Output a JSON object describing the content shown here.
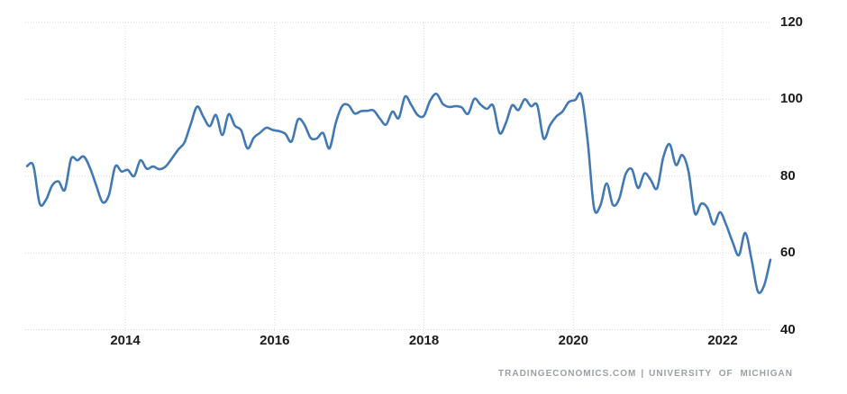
{
  "chart_data": {
    "type": "line",
    "series": [
      {
        "name": "UNIVERSITY OF MICHIGAN",
        "color": "#4279b4",
        "dates": [
          "2012-10",
          "2012-11",
          "2012-12",
          "2013-01",
          "2013-02",
          "2013-03",
          "2013-04",
          "2013-05",
          "2013-06",
          "2013-07",
          "2013-08",
          "2013-09",
          "2013-10",
          "2013-11",
          "2013-12",
          "2014-01",
          "2014-02",
          "2014-03",
          "2014-04",
          "2014-05",
          "2014-06",
          "2014-07",
          "2014-08",
          "2014-09",
          "2014-10",
          "2014-11",
          "2014-12",
          "2015-01",
          "2015-02",
          "2015-03",
          "2015-04",
          "2015-05",
          "2015-06",
          "2015-07",
          "2015-08",
          "2015-09",
          "2015-10",
          "2015-11",
          "2015-12",
          "2016-01",
          "2016-02",
          "2016-03",
          "2016-04",
          "2016-05",
          "2016-06",
          "2016-07",
          "2016-08",
          "2016-09",
          "2016-10",
          "2016-11",
          "2016-12",
          "2017-01",
          "2017-02",
          "2017-03",
          "2017-04",
          "2017-05",
          "2017-06",
          "2017-07",
          "2017-08",
          "2017-09",
          "2017-10",
          "2017-11",
          "2017-12",
          "2018-01",
          "2018-02",
          "2018-03",
          "2018-04",
          "2018-05",
          "2018-06",
          "2018-07",
          "2018-08",
          "2018-09",
          "2018-10",
          "2018-11",
          "2018-12",
          "2019-01",
          "2019-02",
          "2019-03",
          "2019-04",
          "2019-05",
          "2019-06",
          "2019-07",
          "2019-08",
          "2019-09",
          "2019-10",
          "2019-11",
          "2019-12",
          "2020-01",
          "2020-02",
          "2020-03",
          "2020-04",
          "2020-05",
          "2020-06",
          "2020-07",
          "2020-08",
          "2020-09",
          "2020-10",
          "2020-11",
          "2020-12",
          "2021-01",
          "2021-02",
          "2021-03",
          "2021-04",
          "2021-05",
          "2021-06",
          "2021-07",
          "2021-08",
          "2021-09",
          "2021-10",
          "2021-11",
          "2021-12",
          "2022-01",
          "2022-02",
          "2022-03",
          "2022-04",
          "2022-05",
          "2022-06",
          "2022-07",
          "2022-08"
        ],
        "values": [
          82.6,
          82.7,
          72.9,
          73.8,
          77.6,
          78.6,
          76.4,
          84.5,
          84.1,
          85.1,
          82.1,
          77.5,
          73.2,
          75.1,
          82.5,
          81.2,
          81.6,
          80.0,
          84.1,
          81.9,
          82.5,
          81.8,
          82.5,
          84.6,
          86.9,
          88.8,
          93.6,
          98.1,
          95.4,
          93.0,
          95.9,
          90.7,
          96.1,
          93.1,
          91.9,
          87.2,
          90.0,
          91.3,
          92.6,
          92.0,
          91.7,
          91.0,
          89.0,
          94.7,
          93.5,
          90.0,
          89.8,
          91.2,
          87.2,
          93.8,
          98.2,
          98.5,
          96.3,
          96.9,
          97.0,
          97.1,
          95.0,
          93.4,
          96.8,
          95.1,
          100.7,
          98.5,
          95.9,
          95.7,
          99.7,
          101.4,
          98.8,
          98.0,
          98.2,
          97.9,
          96.2,
          100.1,
          98.6,
          97.5,
          98.3,
          91.2,
          93.8,
          98.4,
          97.2,
          100.0,
          98.2,
          98.4,
          89.8,
          93.2,
          95.5,
          96.8,
          99.3,
          99.8,
          101.0,
          89.1,
          71.8,
          72.3,
          78.1,
          72.5,
          74.1,
          80.4,
          81.8,
          76.9,
          80.7,
          79.0,
          76.8,
          84.9,
          88.3,
          82.9,
          85.5,
          81.2,
          70.3,
          72.8,
          71.7,
          67.4,
          70.6,
          67.2,
          62.8,
          59.4,
          65.2,
          58.4,
          50.0,
          51.5,
          58.2
        ]
      }
    ],
    "x_axis": {
      "ticks": [
        "2014",
        "2016",
        "2018",
        "2020",
        "2022"
      ]
    },
    "y_axis": {
      "ticks": [
        "120",
        "100",
        "80",
        "60",
        "40"
      ],
      "tick_values": [
        120,
        100,
        80,
        60,
        40
      ],
      "range": [
        40,
        120
      ],
      "position": "right"
    },
    "grid": true,
    "legend": "none"
  },
  "attribution": {
    "source": "TRADINGECONOMICS.COM",
    "separator": "|",
    "provider": "UNIVERSITY OF MICHIGAN"
  },
  "colors": {
    "line": "#4279b4",
    "grid": "#d8d8d8",
    "axis_text": "#1b1b1b",
    "attribution_text": "#9aa0a6",
    "background": "#ffffff"
  }
}
